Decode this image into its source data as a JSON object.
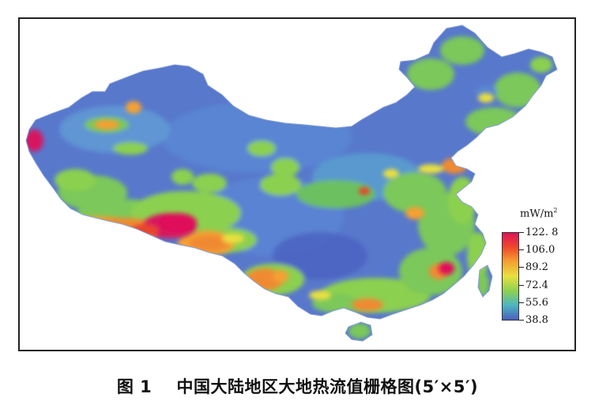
{
  "chart_data": {
    "type": "heatmap",
    "legend": {
      "unit_text": "mW/m",
      "unit_superscript": "2",
      "ticks": [
        "122. 8",
        "106.0",
        "89.2",
        "72.4",
        "55.6",
        "38.8"
      ],
      "tick_values": [
        122.8,
        106.0,
        89.2,
        72.4,
        55.6,
        38.8
      ],
      "range": [
        38.8,
        122.8
      ],
      "colors": [
        "#e0105a",
        "#f04a2a",
        "#f5a030",
        "#e8e040",
        "#8cd050",
        "#4cb8c0",
        "#4a60c0"
      ]
    },
    "map_colors": {
      "base": "#5878cc",
      "low": "#4a60c0",
      "mid": "#56b4c8",
      "green": "#7cc85a",
      "yellow": "#d8e048",
      "orange": "#f08a30",
      "red": "#e8442a",
      "magenta": "#d81660"
    }
  },
  "caption": {
    "figure_label": "图 1",
    "text": "中国大陆地区大地热流值栅格图(5′×5′)"
  }
}
